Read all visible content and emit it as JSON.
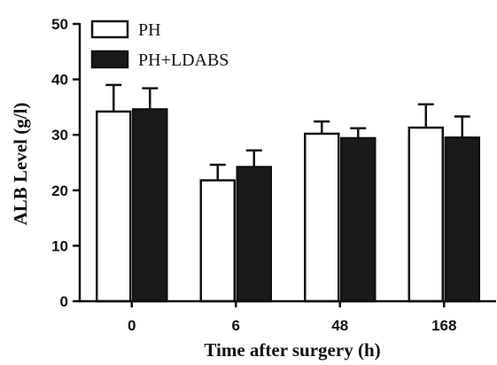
{
  "chart_data": {
    "type": "bar",
    "xlabel": "Time after surgery (h)",
    "ylabel": "ALB Level (g/l)",
    "categories": [
      "0",
      "6",
      "48",
      "168"
    ],
    "ylim": [
      0,
      50
    ],
    "yticks": [
      "0",
      "10",
      "20",
      "30",
      "40",
      "50"
    ],
    "legend_position": "top-left",
    "series": [
      {
        "name": "PH",
        "values": [
          34.2,
          21.8,
          30.2,
          31.3
        ],
        "errors": [
          4.8,
          2.8,
          2.2,
          4.2
        ],
        "color": "#ffffff"
      },
      {
        "name": "PH+LDABS",
        "values": [
          34.6,
          24.2,
          29.4,
          29.5
        ],
        "errors": [
          3.8,
          3.0,
          1.8,
          3.8
        ],
        "color": "#1a1a1a"
      }
    ]
  }
}
